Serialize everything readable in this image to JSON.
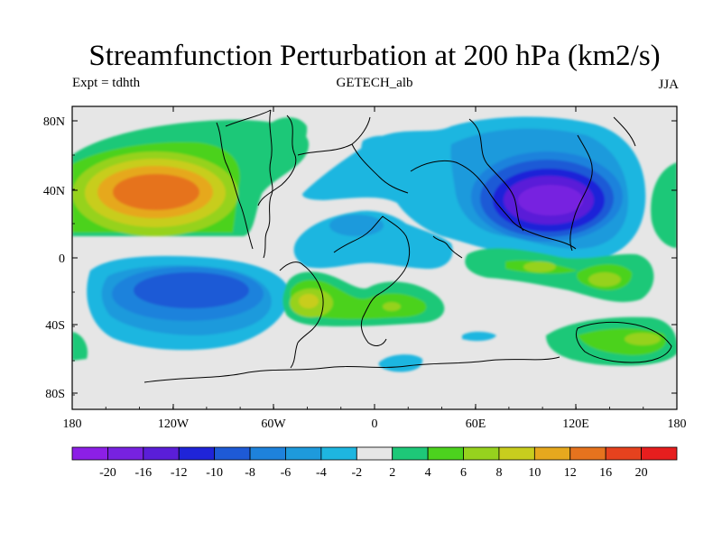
{
  "header": {
    "title": "Streamfunction Perturbation at 200 hPa (km2/s)",
    "left": "Expt = tdhth",
    "center": "GETECH_alb",
    "right": "JJA"
  },
  "axes": {
    "y_ticks": [
      "80N",
      "40N",
      "0",
      "40S",
      "80S"
    ],
    "x_ticks": [
      "180",
      "120W",
      "60W",
      "0",
      "60E",
      "120E",
      "180"
    ]
  },
  "colorbar": {
    "labels": [
      "-20",
      "-16",
      "-12",
      "-10",
      "-8",
      "-6",
      "-4",
      "-2",
      "2",
      "4",
      "6",
      "8",
      "10",
      "12",
      "16",
      "20"
    ],
    "colors": [
      "#8C1FE6",
      "#7722E0",
      "#5A1ED8",
      "#1F24D8",
      "#1E5AD6",
      "#1E82DC",
      "#1E9ADC",
      "#1EB6E0",
      "#E6E6E6",
      "#1EC878",
      "#4CD21E",
      "#96D21E",
      "#C8CD1E",
      "#E6A81E",
      "#E6731E",
      "#E6421E",
      "#E61E1E"
    ]
  },
  "map": {
    "background_color": "#E6E6E6",
    "fields": [
      {
        "region": "North Pacific high",
        "level": "16"
      },
      {
        "region": "Asian low",
        "level": "-20"
      },
      {
        "region": "South Pacific low",
        "level": "-10"
      },
      {
        "region": "South Atlantic / Africa high",
        "level": "8"
      },
      {
        "region": "Indian Ocean high",
        "level": "8"
      },
      {
        "region": "Australia / SW Pacific high",
        "level": "8"
      }
    ]
  }
}
